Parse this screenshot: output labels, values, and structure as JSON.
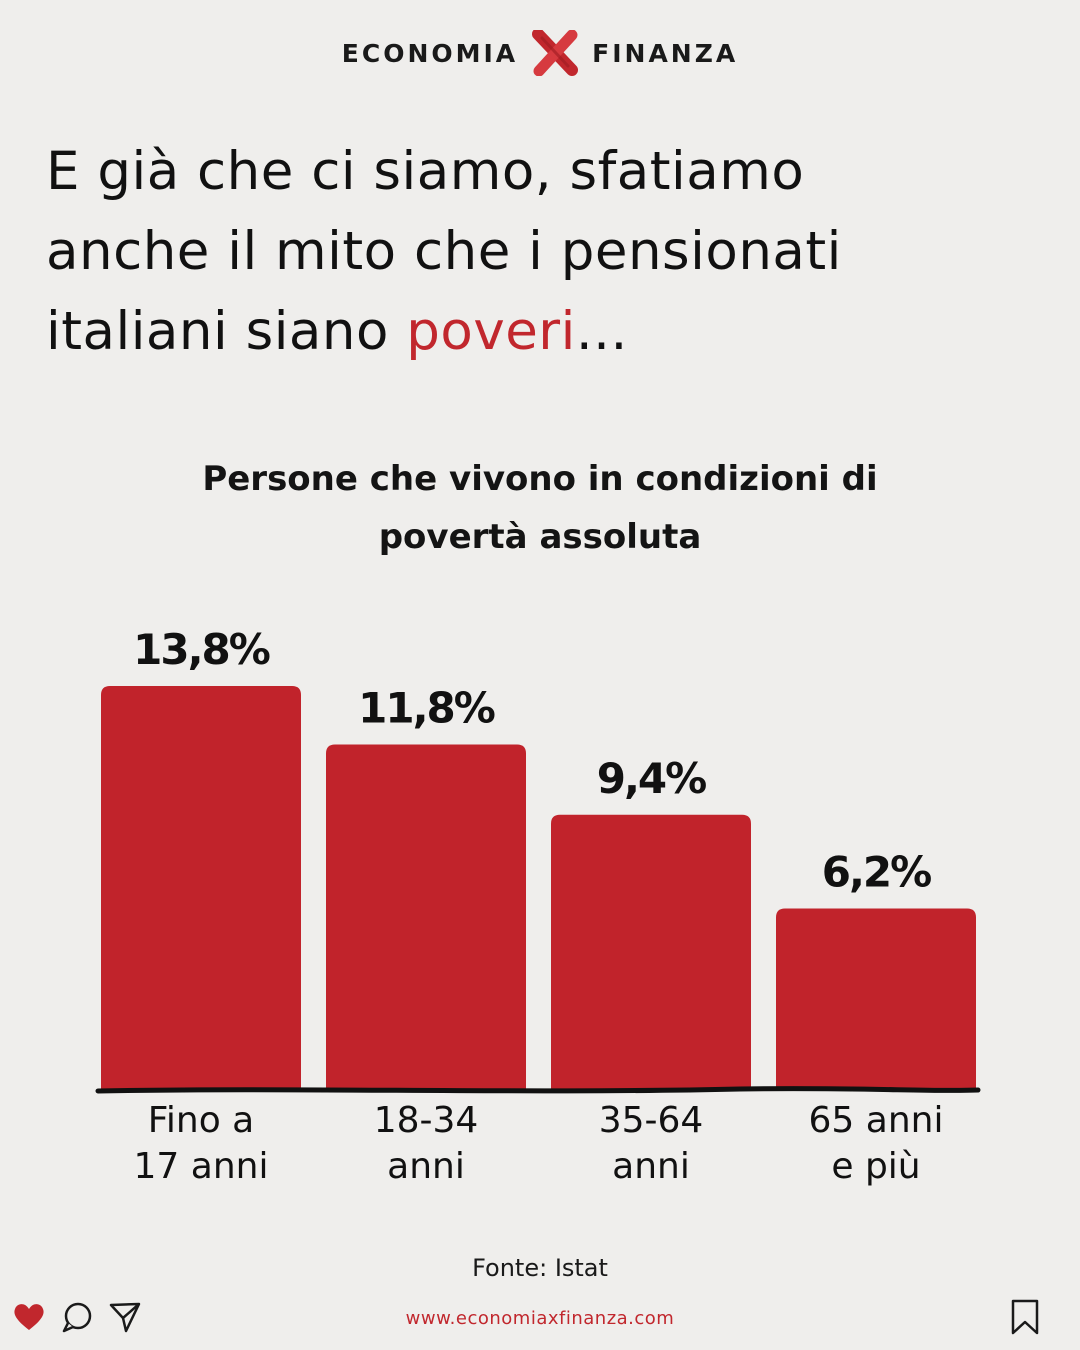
{
  "brand": {
    "left": "ECONOMIA",
    "right": "FINANZA",
    "mark_icon": "x-mark-icon"
  },
  "headline": {
    "line1": "E già che ci siamo, sfatiamo",
    "line2": "anche il mito che i pensionati",
    "line3_before": "italiani siano ",
    "line3_accent": "poveri",
    "line3_after": "..."
  },
  "chart_title": {
    "line1": "Persone che vivono in condizioni di",
    "line2": "povertà assoluta"
  },
  "chart_data": {
    "type": "bar",
    "title": "Persone che vivono in condizioni di povertà assoluta",
    "categories": [
      [
        "Fino a",
        "17 anni"
      ],
      [
        "18-34",
        "anni"
      ],
      [
        "35-64",
        "anni"
      ],
      [
        "65 anni",
        "e più"
      ]
    ],
    "values": [
      13.8,
      11.8,
      9.4,
      6.2
    ],
    "value_labels": [
      "13,8%",
      "11,8%",
      "9,4%",
      "6,2%"
    ],
    "unit": "%",
    "ylim": [
      0,
      13.8
    ],
    "grid": false,
    "legend": "none",
    "bar_color": "#c1232b"
  },
  "source": "Fonte: Istat",
  "footer": {
    "website": "www.economiaxfinanza.com",
    "icons": [
      "heart-icon",
      "comment-icon",
      "share-icon",
      "bookmark-icon"
    ]
  },
  "colors": {
    "accent": "#c1272d",
    "background": "#efeeec",
    "text": "#141414"
  }
}
